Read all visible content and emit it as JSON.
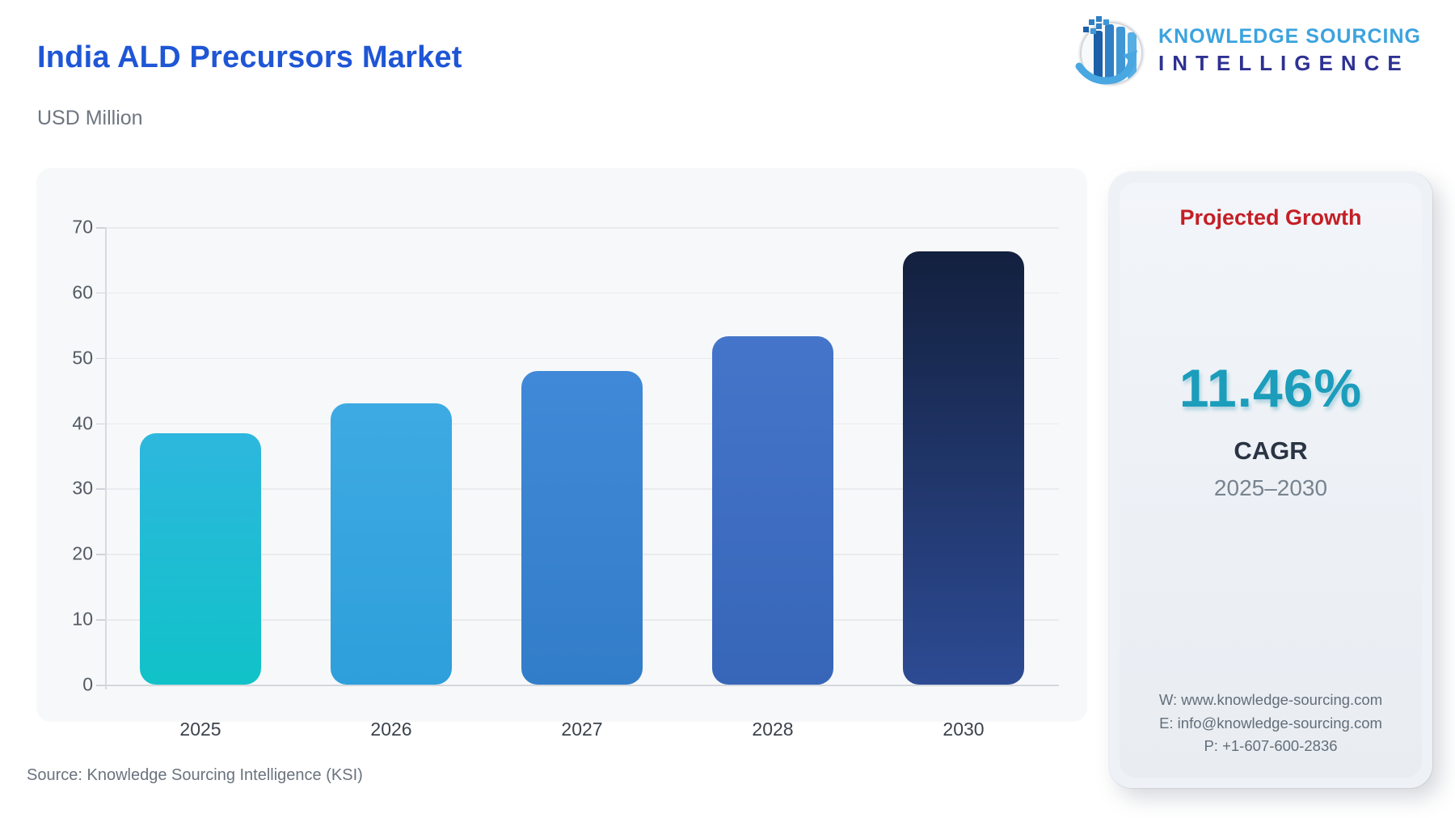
{
  "page": {
    "title": "India ALD Precursors Market",
    "subtitle": "USD Million",
    "source": "Source: Knowledge Sourcing Intelligence (KSI)"
  },
  "logo": {
    "line1": "KNOWLEDGE SOURCING",
    "line2": "INTELLIGENCE",
    "icon": "bar-chart-growth-arrow-badge",
    "line1_color": "#3ba3de",
    "line2_color": "#2e3192"
  },
  "chart_data": {
    "type": "bar",
    "title": "India ALD Precursors Market",
    "unit": "USD Million",
    "xlabel": "",
    "ylabel": "USD Million",
    "categories": [
      "2025",
      "2026",
      "2027",
      "2028",
      "2030"
    ],
    "values": [
      38.5,
      43,
      48,
      53.3,
      66.3
    ],
    "ylim": [
      0,
      70
    ],
    "yticks": [
      0,
      10,
      20,
      30,
      40,
      50,
      60,
      70
    ],
    "grid": true,
    "legend": false,
    "bar_gradients": [
      {
        "top": "#2db7de",
        "bottom": "#10c2c8"
      },
      {
        "top": "#3eaae3",
        "bottom": "#2e9fdb"
      },
      {
        "top": "#4089d8",
        "bottom": "#327dc9"
      },
      {
        "top": "#4575ca",
        "bottom": "#3766b8"
      },
      {
        "top": "#13203e",
        "bottom": "#2d4b94"
      }
    ]
  },
  "growth_card": {
    "heading": "Projected Growth",
    "heading_color": "#c41e25",
    "value": "11.46%",
    "value_color": "#1b9dbb",
    "metric": "CAGR",
    "period": "2025–2030",
    "contact": {
      "website": "W: www.knowledge-sourcing.com",
      "email": "E: info@knowledge-sourcing.com",
      "phone": "P: +1-607-600-2836"
    }
  }
}
